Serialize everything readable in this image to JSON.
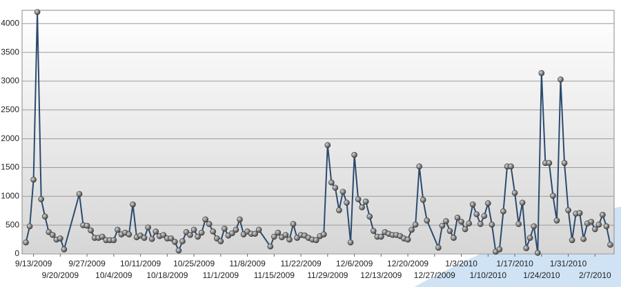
{
  "chart_data": {
    "type": "line",
    "x": [
      "9/11/2009",
      "9/12/2009",
      "9/13/2009",
      "9/14/2009",
      "9/15/2009",
      "9/16/2009",
      "9/17/2009",
      "9/18/2009",
      "9/19/2009",
      "9/20/2009",
      "9/21/2009",
      "9/25/2009",
      "9/26/2009",
      "9/27/2009",
      "9/28/2009",
      "9/29/2009",
      "9/30/2009",
      "10/1/2009",
      "10/2/2009",
      "10/3/2009",
      "10/4/2009",
      "10/5/2009",
      "10/6/2009",
      "10/7/2009",
      "10/8/2009",
      "10/9/2009",
      "10/10/2009",
      "10/11/2009",
      "10/12/2009",
      "10/13/2009",
      "10/14/2009",
      "10/15/2009",
      "10/16/2009",
      "10/17/2009",
      "10/18/2009",
      "10/19/2009",
      "10/20/2009",
      "10/21/2009",
      "10/22/2009",
      "10/23/2009",
      "10/24/2009",
      "10/25/2009",
      "10/26/2009",
      "10/27/2009",
      "10/28/2009",
      "10/29/2009",
      "10/30/2009",
      "10/31/2009",
      "11/1/2009",
      "11/2/2009",
      "11/3/2009",
      "11/4/2009",
      "11/5/2009",
      "11/6/2009",
      "11/7/2009",
      "11/8/2009",
      "11/9/2009",
      "11/10/2009",
      "11/11/2009",
      "11/14/2009",
      "11/15/2009",
      "11/16/2009",
      "11/17/2009",
      "11/18/2009",
      "11/19/2009",
      "11/20/2009",
      "11/21/2009",
      "11/22/2009",
      "11/23/2009",
      "11/24/2009",
      "11/25/2009",
      "11/26/2009",
      "11/27/2009",
      "11/28/2009",
      "11/29/2009",
      "11/30/2009",
      "12/1/2009",
      "12/2/2009",
      "12/3/2009",
      "12/4/2009",
      "12/5/2009",
      "12/6/2009",
      "12/7/2009",
      "12/8/2009",
      "12/9/2009",
      "12/10/2009",
      "12/11/2009",
      "12/12/2009",
      "12/13/2009",
      "12/14/2009",
      "12/15/2009",
      "12/16/2009",
      "12/17/2009",
      "12/18/2009",
      "12/19/2009",
      "12/20/2009",
      "12/21/2009",
      "12/22/2009",
      "12/23/2009",
      "12/24/2009",
      "12/25/2009",
      "12/28/2009",
      "12/29/2009",
      "12/30/2009",
      "12/31/2009",
      "1/1/2010",
      "1/2/2010",
      "1/3/2010",
      "1/4/2010",
      "1/5/2010",
      "1/6/2010",
      "1/7/2010",
      "1/8/2010",
      "1/9/2010",
      "1/10/2010",
      "1/11/2010",
      "1/12/2010",
      "1/13/2010",
      "1/14/2010",
      "1/15/2010",
      "1/16/2010",
      "1/17/2010",
      "1/18/2010",
      "1/19/2010",
      "1/20/2010",
      "1/21/2010",
      "1/22/2010",
      "1/23/2010",
      "1/24/2010",
      "1/25/2010",
      "1/26/2010",
      "1/27/2010",
      "1/28/2010",
      "1/29/2010",
      "1/30/2010",
      "1/31/2010",
      "2/1/2010",
      "2/2/2010",
      "2/3/2010",
      "2/4/2010",
      "2/5/2010",
      "2/6/2010",
      "2/7/2010",
      "2/8/2010",
      "2/9/2010",
      "2/10/2010",
      "2/11/2010"
    ],
    "values": [
      200,
      480,
      1290,
      4200,
      950,
      650,
      380,
      330,
      250,
      270,
      80,
      1040,
      500,
      490,
      410,
      280,
      280,
      300,
      240,
      240,
      240,
      420,
      340,
      370,
      340,
      860,
      290,
      320,
      280,
      460,
      260,
      390,
      310,
      330,
      270,
      270,
      210,
      60,
      220,
      380,
      330,
      420,
      300,
      370,
      600,
      520,
      390,
      270,
      220,
      440,
      320,
      360,
      420,
      600,
      340,
      390,
      350,
      350,
      420,
      130,
      300,
      370,
      290,
      330,
      250,
      520,
      280,
      330,
      320,
      280,
      250,
      240,
      310,
      340,
      1890,
      1240,
      1150,
      760,
      1080,
      890,
      200,
      1720,
      950,
      810,
      910,
      650,
      400,
      300,
      300,
      380,
      350,
      330,
      330,
      310,
      270,
      250,
      420,
      510,
      1520,
      940,
      580,
      110,
      490,
      570,
      400,
      280,
      630,
      560,
      430,
      530,
      860,
      690,
      520,
      660,
      880,
      510,
      40,
      80,
      740,
      1520,
      1520,
      1060,
      520,
      890,
      100,
      280,
      480,
      20,
      3140,
      1580,
      1580,
      1010,
      580,
      3030,
      1580,
      760,
      240,
      700,
      710,
      260,
      530,
      560,
      430,
      510,
      680,
      480,
      160
    ],
    "color": "#2b4a6e",
    "xlim": [
      "9/10/2009",
      "2/12/2010"
    ],
    "xticks": [
      "9/13/2009",
      "9/20/2009",
      "9/27/2009",
      "10/4/2009",
      "10/11/2009",
      "10/18/2009",
      "10/25/2009",
      "11/1/2009",
      "11/8/2009",
      "11/15/2009",
      "11/22/2009",
      "11/29/2009",
      "12/6/2009",
      "12/13/2009",
      "12/20/2009",
      "12/27/2009",
      "1/3/2010",
      "1/10/2010",
      "1/17/2010",
      "1/24/2010",
      "1/31/2010",
      "2/7/2010"
    ],
    "ylim": [
      0,
      4230
    ],
    "yticks": [
      0,
      500,
      1000,
      1500,
      2000,
      2500,
      3000,
      3500,
      4000
    ],
    "grid": true
  }
}
